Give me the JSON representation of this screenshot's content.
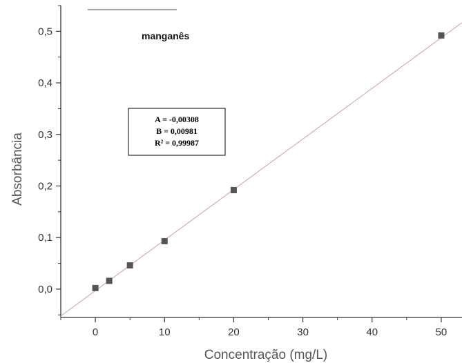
{
  "chart_data": {
    "type": "scatter",
    "title": "manganês",
    "xlabel": "Concentração (mg/L)",
    "ylabel": "Absorbância",
    "xlim": [
      -5,
      53
    ],
    "ylim": [
      -0.055,
      0.55
    ],
    "xticks": [
      0,
      10,
      20,
      30,
      40,
      50
    ],
    "xtick_labels": [
      "0",
      "10",
      "20",
      "30",
      "40",
      "50"
    ],
    "yticks": [
      0.0,
      0.1,
      0.2,
      0.3,
      0.4,
      0.5
    ],
    "ytick_labels": [
      "0,0",
      "0,1",
      "0,2",
      "0,3",
      "0,4",
      "0,5"
    ],
    "grid": false,
    "series": [
      {
        "x": [
          0,
          2,
          5,
          10,
          20,
          50
        ],
        "y": [
          0.002,
          0.016,
          0.046,
          0.093,
          0.192,
          0.492
        ],
        "marker": "square",
        "color": "#555555"
      }
    ],
    "fit_line": {
      "intercept": -0.00308,
      "slope": 0.00981,
      "color": "#c9a0a0"
    },
    "annotation_lines": [
      "A = -0,00308",
      "B = 0,00981",
      "R² = 0,99987"
    ]
  }
}
